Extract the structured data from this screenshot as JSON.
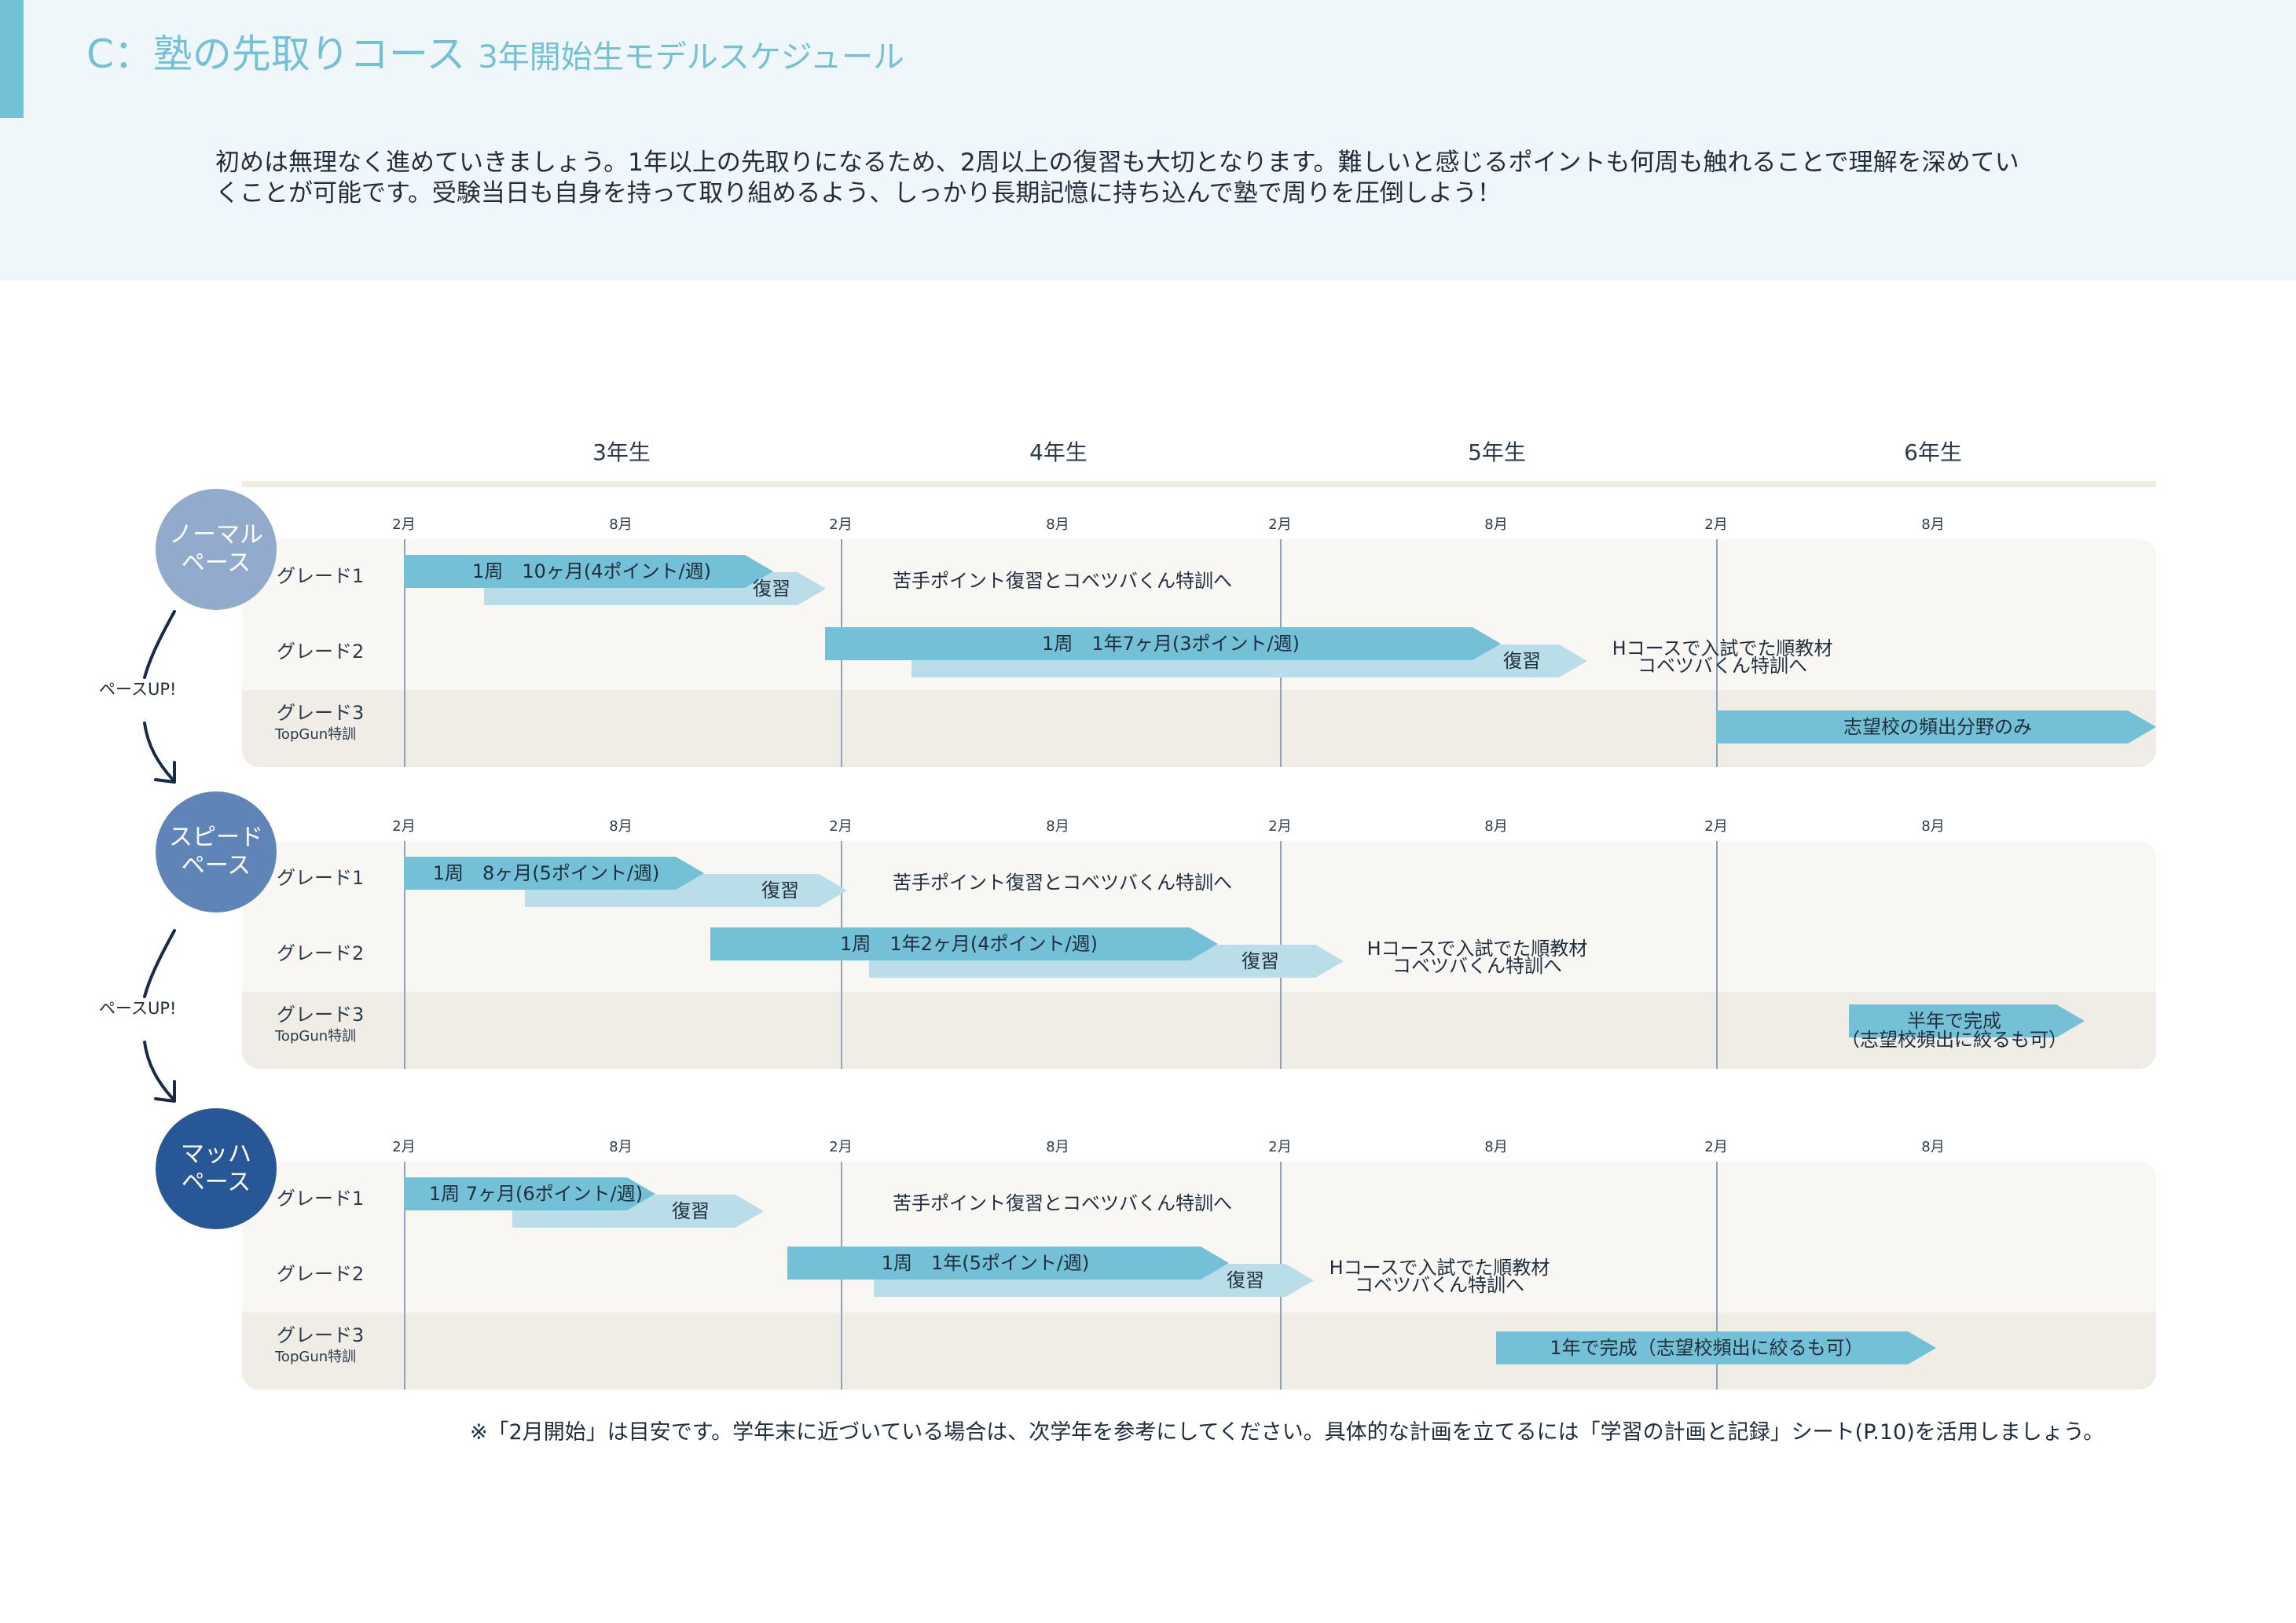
{
  "header": {
    "title_main": "C：塾の先取りコース ",
    "title_sub": "3年開始生モデルスケジュール",
    "intro_line1": "初めは無理なく進めていきましょう。1年以上の先取りになるため、2周以上の復習も大切となります。難しいと感じるポイントも何周も触れることで理解を深めてい",
    "intro_line2": "くことが可能です。受験当日も自身を持って取り組めるよう、しっかり長期記憶に持ち込んで塾で周りを圧倒しよう！"
  },
  "timeline": {
    "years": [
      "3年生",
      "4年生",
      "5年生",
      "6年生"
    ],
    "month_labels": [
      "2月",
      "8月",
      "2月",
      "8月",
      "2月",
      "8月",
      "2月",
      "8月"
    ]
  },
  "pace_up_label": "ペースUP!",
  "colors": {
    "bar_primary": "#74c0d7",
    "bar_review": "#b9deea",
    "normal_pace": "#92abcd",
    "speed_pace": "#5f85b8",
    "mach_pace": "#285797"
  },
  "sections": [
    {
      "pace_line1": "ノーマル",
      "pace_line2": "ペース",
      "grades": [
        {
          "label": "グレード1",
          "sub": ""
        },
        {
          "label": "グレード2",
          "sub": ""
        },
        {
          "label": "グレード3",
          "sub": "TopGun特訓"
        }
      ],
      "bars": [
        {
          "row": 0,
          "kind": "main",
          "label": "1周　10ヶ月(4ポイント/週)"
        },
        {
          "row": 0,
          "kind": "review",
          "label": "復習"
        },
        {
          "row": 1,
          "kind": "main",
          "label": "1周　1年7ヶ月(3ポイント/週)"
        },
        {
          "row": 1,
          "kind": "review",
          "label": "復習"
        },
        {
          "row": 2,
          "kind": "main",
          "label": "志望校の頻出分野のみ"
        }
      ],
      "notes": [
        {
          "row": 0,
          "line1": "苦手ポイント復習とコベツバくん特訓へ",
          "line2": ""
        },
        {
          "row": 1,
          "line1": "Hコースで入試でた順教材",
          "line2": "コベツバくん特訓へ"
        }
      ]
    },
    {
      "pace_line1": "スピード",
      "pace_line2": "ペース",
      "grades": [
        {
          "label": "グレード1",
          "sub": ""
        },
        {
          "label": "グレード2",
          "sub": ""
        },
        {
          "label": "グレード3",
          "sub": "TopGun特訓"
        }
      ],
      "bars": [
        {
          "row": 0,
          "kind": "main",
          "label": "1周　8ヶ月(5ポイント/週)"
        },
        {
          "row": 0,
          "kind": "review",
          "label": "復習"
        },
        {
          "row": 1,
          "kind": "main",
          "label": "1周　1年2ヶ月(4ポイント/週)"
        },
        {
          "row": 1,
          "kind": "review",
          "label": "復習"
        },
        {
          "row": 2,
          "kind": "main",
          "label": "半年で完成"
        }
      ],
      "notes": [
        {
          "row": 0,
          "line1": "苦手ポイント復習とコベツバくん特訓へ",
          "line2": ""
        },
        {
          "row": 1,
          "line1": "Hコースで入試でた順教材",
          "line2": "コベツバくん特訓へ"
        },
        {
          "row": 2,
          "line1": "（志望校頻出に絞るも可）",
          "line2": ""
        }
      ]
    },
    {
      "pace_line1": "マッハ",
      "pace_line2": "ペース",
      "grades": [
        {
          "label": "グレード1",
          "sub": ""
        },
        {
          "label": "グレード2",
          "sub": ""
        },
        {
          "label": "グレード3",
          "sub": "TopGun特訓"
        }
      ],
      "bars": [
        {
          "row": 0,
          "kind": "main",
          "label": "1周 7ヶ月(6ポイント/週)"
        },
        {
          "row": 0,
          "kind": "review",
          "label": "復習"
        },
        {
          "row": 1,
          "kind": "main",
          "label": "1周　1年(5ポイント/週)"
        },
        {
          "row": 1,
          "kind": "review",
          "label": "復習"
        },
        {
          "row": 2,
          "kind": "main",
          "label": "1年で完成（志望校頻出に絞るも可）"
        }
      ],
      "notes": [
        {
          "row": 0,
          "line1": "苦手ポイント復習とコベツバくん特訓へ",
          "line2": ""
        },
        {
          "row": 1,
          "line1": "Hコースで入試でた順教材",
          "line2": "コベツバくん特訓へ"
        }
      ]
    }
  ],
  "footnote": "※「2月開始」は目安です。学年末に近づいている場合は、次学年を参考にしてください。具体的な計画を立てるには「学習の計画と記録」シート(P.10)を活用しましょう。"
}
